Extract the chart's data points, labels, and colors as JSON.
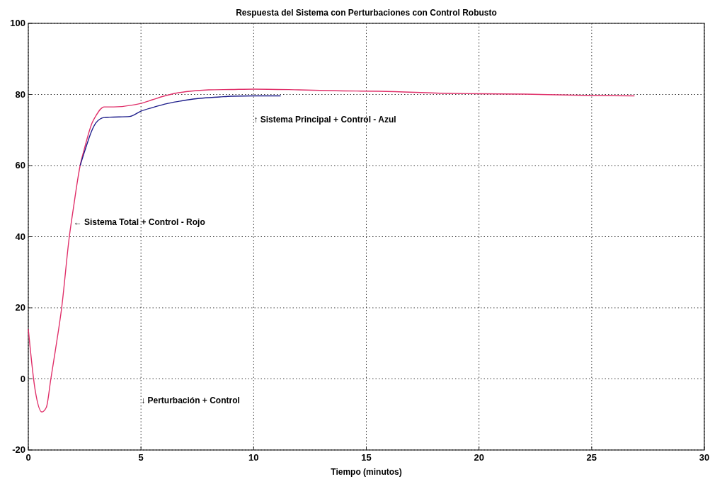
{
  "chart_data": {
    "type": "line",
    "title": "Respuesta del Sistema con Perturbaciones con Control Robusto",
    "xlabel": "Tiempo (minutos)",
    "xlim": [
      0,
      30
    ],
    "ylim": [
      -20,
      100
    ],
    "xticks": [
      0,
      5,
      10,
      15,
      20,
      25,
      30
    ],
    "yticks": [
      -20,
      0,
      20,
      40,
      60,
      80,
      100
    ],
    "grid": true,
    "marker": "none",
    "line_style": "solid",
    "series": [
      {
        "color": "#e0306a",
        "x": [
          0,
          0.3,
          0.6,
          0.8,
          1.0,
          1.2,
          1.48,
          1.82,
          2.0,
          2.3,
          2.5,
          2.83,
          3.0,
          3.36,
          3.8,
          4.6,
          5.0,
          5.5,
          6.0,
          6.5,
          7.0,
          8.0,
          9.0,
          10.0,
          12.0,
          14.0,
          15.6,
          18.7,
          20.0,
          22.0,
          25.0,
          26.9
        ],
        "values": [
          14,
          -3,
          -9.3,
          -8,
          0,
          8,
          20,
          40,
          48,
          60,
          65,
          72,
          74,
          76.5,
          76.5,
          77,
          77.5,
          78.5,
          79.5,
          80.3,
          80.8,
          81.3,
          81.4,
          81.5,
          81.3,
          81,
          80.9,
          80.3,
          80.2,
          80.1,
          79.7,
          79.6
        ]
      },
      {
        "color": "#1c1c8a",
        "x": [
          2.3,
          2.5,
          2.83,
          3.0,
          3.36,
          3.6,
          4.5,
          5.0,
          5.5,
          6.2,
          7.0,
          7.6,
          8.5,
          9.0,
          10.0,
          11.2
        ],
        "values": [
          60,
          64,
          70,
          72,
          73.5,
          73.6,
          73.8,
          75.3,
          76.3,
          77.5,
          78.4,
          78.9,
          79.3,
          79.5,
          79.6,
          79.6
        ]
      }
    ],
    "annotations": [
      {
        "text": "← Sistema Total + Control - Rojo",
        "x": 2,
        "y": 44
      },
      "↑ Sistema Principal + Control - Azul",
      "↓ Perturbación + Control"
    ]
  }
}
